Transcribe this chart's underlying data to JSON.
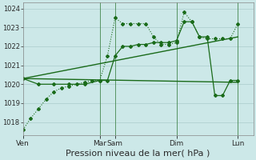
{
  "bg_color": "#cce8e8",
  "grid_color": "#aacccc",
  "line_color": "#1a6b1a",
  "xlabel": "Pression niveau de la mer( hPa )",
  "xlabel_fontsize": 8,
  "ylim": [
    1017.3,
    1024.3
  ],
  "yticks": [
    1018,
    1019,
    1020,
    1021,
    1022,
    1023,
    1024
  ],
  "xtick_labels": [
    "Ven",
    "Mar",
    "Sam",
    "Dim",
    "Lun"
  ],
  "xtick_positions": [
    0,
    30,
    36,
    60,
    84
  ],
  "vlines_x": [
    30,
    36,
    60,
    84
  ],
  "xlim": [
    0,
    90
  ],
  "series1_x": [
    0,
    3,
    6,
    9,
    12,
    15,
    18,
    21,
    24,
    27,
    30,
    33,
    36,
    39,
    42,
    45,
    48,
    51,
    54,
    57,
    60,
    63,
    66,
    69,
    72,
    75,
    78,
    81,
    84
  ],
  "series1_y": [
    1017.6,
    1018.2,
    1018.7,
    1019.2,
    1019.6,
    1019.8,
    1019.9,
    1020.0,
    1020.1,
    1020.2,
    1020.2,
    1021.5,
    1023.5,
    1023.2,
    1023.2,
    1023.2,
    1023.2,
    1022.5,
    1022.1,
    1022.1,
    1022.2,
    1023.8,
    1023.3,
    1022.5,
    1022.4,
    1022.4,
    1022.4,
    1022.4,
    1023.2
  ],
  "series2_x": [
    0,
    6,
    12,
    18,
    24,
    30,
    33,
    36,
    39,
    42,
    45,
    48,
    51,
    54,
    57,
    60,
    63,
    66,
    69,
    72,
    75,
    78,
    81,
    84
  ],
  "series2_y": [
    1020.3,
    1020.0,
    1020.0,
    1020.0,
    1020.0,
    1020.2,
    1020.2,
    1021.5,
    1022.0,
    1022.0,
    1022.1,
    1022.1,
    1022.2,
    1022.2,
    1022.2,
    1022.3,
    1023.3,
    1023.3,
    1022.5,
    1022.5,
    1019.4,
    1019.4,
    1020.2,
    1020.2
  ],
  "series3_x": [
    0,
    84
  ],
  "series3_y": [
    1020.3,
    1020.1
  ],
  "series4_x": [
    0,
    84
  ],
  "series4_y": [
    1020.3,
    1022.5
  ],
  "figsize": [
    3.2,
    2.0
  ],
  "dpi": 100
}
